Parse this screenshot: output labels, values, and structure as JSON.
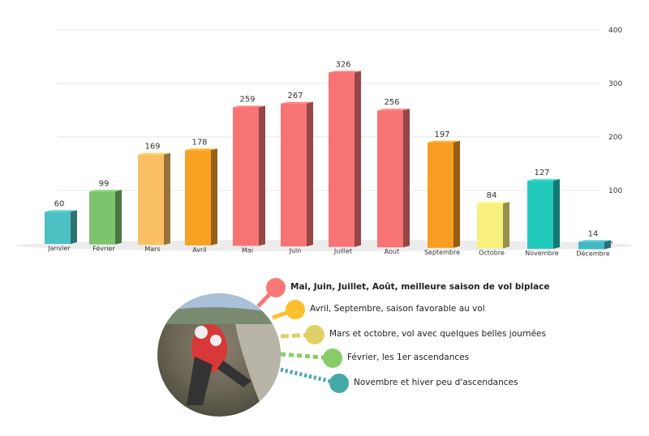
{
  "chart_data": {
    "type": "bar",
    "categories": [
      "Janvier",
      "Février",
      "Mars",
      "Avril",
      "Mai",
      "Juin",
      "Juillet",
      "Aout",
      "Septembre",
      "Octobre",
      "Novembre",
      "Décembre"
    ],
    "values": [
      60,
      99,
      169,
      178,
      259,
      267,
      326,
      256,
      197,
      84,
      127,
      14
    ],
    "colors": [
      "#4cc0c2",
      "#7cc46c",
      "#fcc064",
      "#f8a224",
      "#f87474",
      "#f87474",
      "#f87474",
      "#f87474",
      "#f89c22",
      "#f8f07c",
      "#22cabb",
      "#44b9c4"
    ],
    "yticks": [
      0,
      100,
      200,
      300,
      400
    ],
    "ylim": [
      0,
      400
    ],
    "grid": true,
    "title": "",
    "xlabel": "",
    "ylabel": ""
  },
  "legend": [
    {
      "text": "Mai, Juin, Juillet, Août, meilleure saison de vol biplace",
      "color": "#f87878",
      "bold": true
    },
    {
      "text": "Avril, Septembre, saison favorable au vol",
      "color": "#fbc02d",
      "bold": false
    },
    {
      "text": "Mars et octobre, vol avec quelques belles journées",
      "color": "#e0d068",
      "bold": false
    },
    {
      "text": "Février, les 1er ascendances",
      "color": "#88cc6a",
      "bold": false
    },
    {
      "text": "Novembre et hiver peu d'ascendances",
      "color": "#44aaa8",
      "bold": false
    }
  ]
}
